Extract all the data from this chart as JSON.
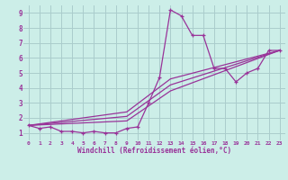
{
  "background_color": "#cceee8",
  "grid_color": "#aacccc",
  "line_color": "#993399",
  "xlabel": "Windchill (Refroidissement éolien,°C)",
  "xlim": [
    -0.5,
    23.5
  ],
  "ylim": [
    0.5,
    9.5
  ],
  "xticks": [
    0,
    1,
    2,
    3,
    4,
    5,
    6,
    7,
    8,
    9,
    10,
    11,
    12,
    13,
    14,
    15,
    16,
    17,
    18,
    19,
    20,
    21,
    22,
    23
  ],
  "yticks": [
    1,
    2,
    3,
    4,
    5,
    6,
    7,
    8,
    9
  ],
  "main_x": [
    0,
    1,
    2,
    3,
    4,
    5,
    6,
    7,
    8,
    9,
    10,
    11,
    12,
    13,
    14,
    15,
    16,
    17,
    18,
    19,
    20,
    21,
    22,
    23
  ],
  "main_y": [
    1.5,
    1.3,
    1.4,
    1.1,
    1.1,
    1.0,
    1.1,
    1.0,
    1.0,
    1.3,
    1.4,
    3.0,
    4.7,
    9.2,
    8.8,
    7.5,
    7.5,
    5.3,
    5.3,
    4.4,
    5.0,
    5.3,
    6.5,
    6.5
  ],
  "straight_lines": [
    {
      "x": [
        0,
        23
      ],
      "y": [
        1.5,
        6.5
      ]
    },
    {
      "x": [
        0,
        23
      ],
      "y": [
        1.5,
        6.5
      ]
    },
    {
      "x": [
        0,
        23
      ],
      "y": [
        1.5,
        6.5
      ]
    }
  ],
  "line1": {
    "x": [
      0,
      9,
      13,
      23
    ],
    "y": [
      1.5,
      1.8,
      3.8,
      6.5
    ]
  },
  "line2": {
    "x": [
      0,
      9,
      13,
      23
    ],
    "y": [
      1.5,
      2.1,
      4.2,
      6.5
    ]
  },
  "line3": {
    "x": [
      0,
      9,
      13,
      23
    ],
    "y": [
      1.5,
      2.4,
      4.6,
      6.5
    ]
  }
}
